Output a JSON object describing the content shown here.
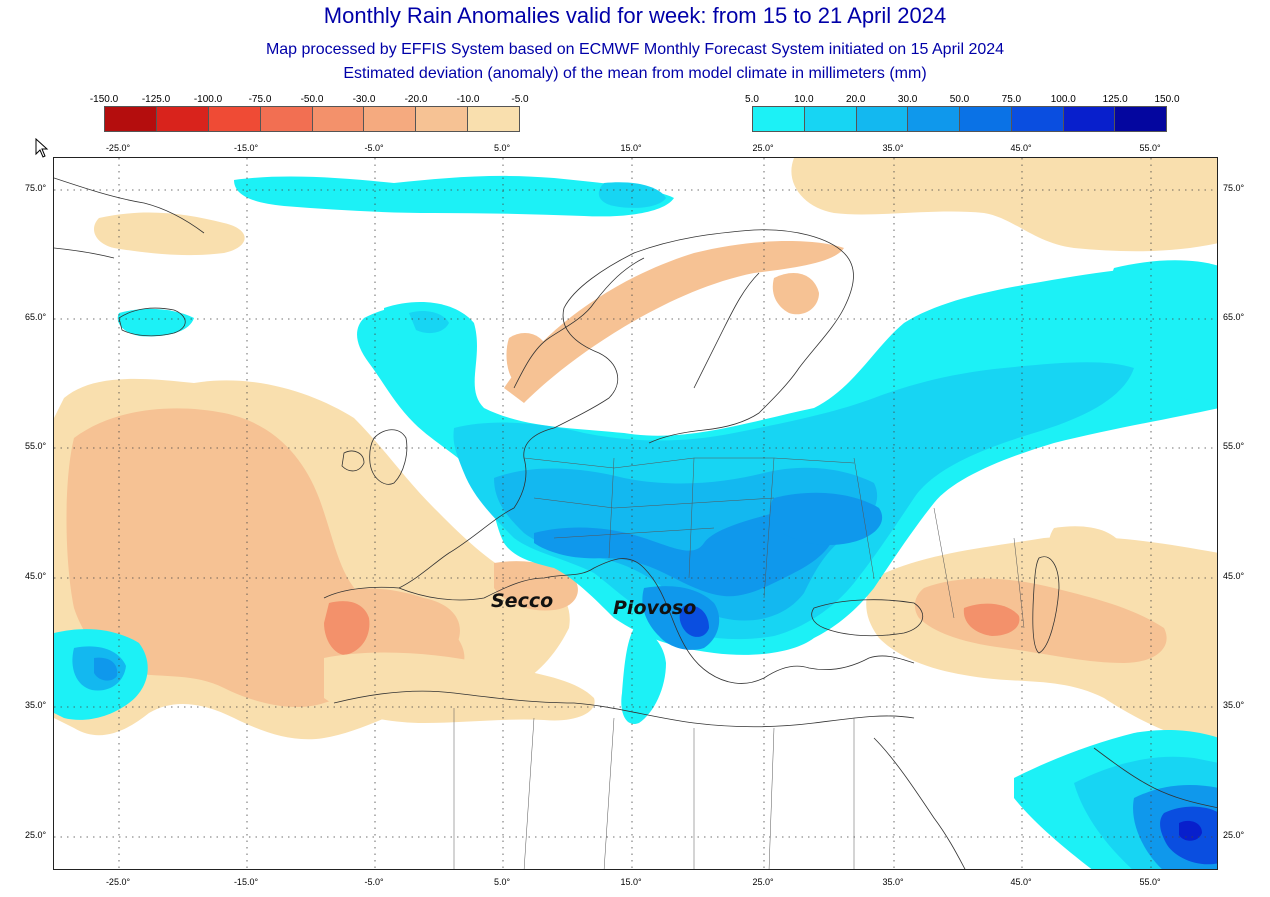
{
  "header": {
    "title": "Monthly Rain Anomalies valid for week: from 15 to 21 April 2024",
    "subtitle1": "Map processed by EFFIS System based on ECMWF Monthly Forecast System initiated on 15 April 2024",
    "subtitle2": "Estimated deviation (anomaly) of the mean from model climate in millimeters (mm)"
  },
  "legend_dry": {
    "ticks": [
      "-150.0",
      "-125.0",
      "-100.0",
      "-75.0",
      "-50.0",
      "-30.0",
      "-20.0",
      "-10.0",
      "-5.0"
    ],
    "colors": [
      "#b40d0d",
      "#d9231c",
      "#ef4b35",
      "#f26f52",
      "#f3916b",
      "#f5aa7f",
      "#f6c294",
      "#f9dfae"
    ]
  },
  "legend_wet": {
    "ticks": [
      "5.0",
      "10.0",
      "20.0",
      "30.0",
      "50.0",
      "75.0",
      "100.0",
      "125.0",
      "150.0"
    ],
    "colors": [
      "#1cf1f6",
      "#17d5f3",
      "#13b8f0",
      "#0f98ec",
      "#0a72e6",
      "#0a4ee0",
      "#081fcc",
      "#04069f"
    ]
  },
  "axes": {
    "lon_labels": [
      "-25.0°",
      "-15.0°",
      "-5.0°",
      "5.0°",
      "15.0°",
      "25.0°",
      "35.0°",
      "45.0°",
      "55.0°"
    ],
    "lat_labels": [
      "75.0°",
      "65.0°",
      "55.0°",
      "45.0°",
      "35.0°",
      "25.0°"
    ]
  },
  "annotations": {
    "dry_label": "Secco",
    "wet_label": "Piovoso"
  },
  "colors": {
    "title": "#0000a8",
    "dry_light": "#f9dfae",
    "dry_mid": "#f6c294",
    "dry_strong": "#f3916b",
    "wet_light": "#1cf1f6",
    "wet_mid": "#17d5f3",
    "wet_strong": "#0f98ec",
    "wet_deep": "#0a4ee0",
    "wet_max": "#081fcc"
  }
}
